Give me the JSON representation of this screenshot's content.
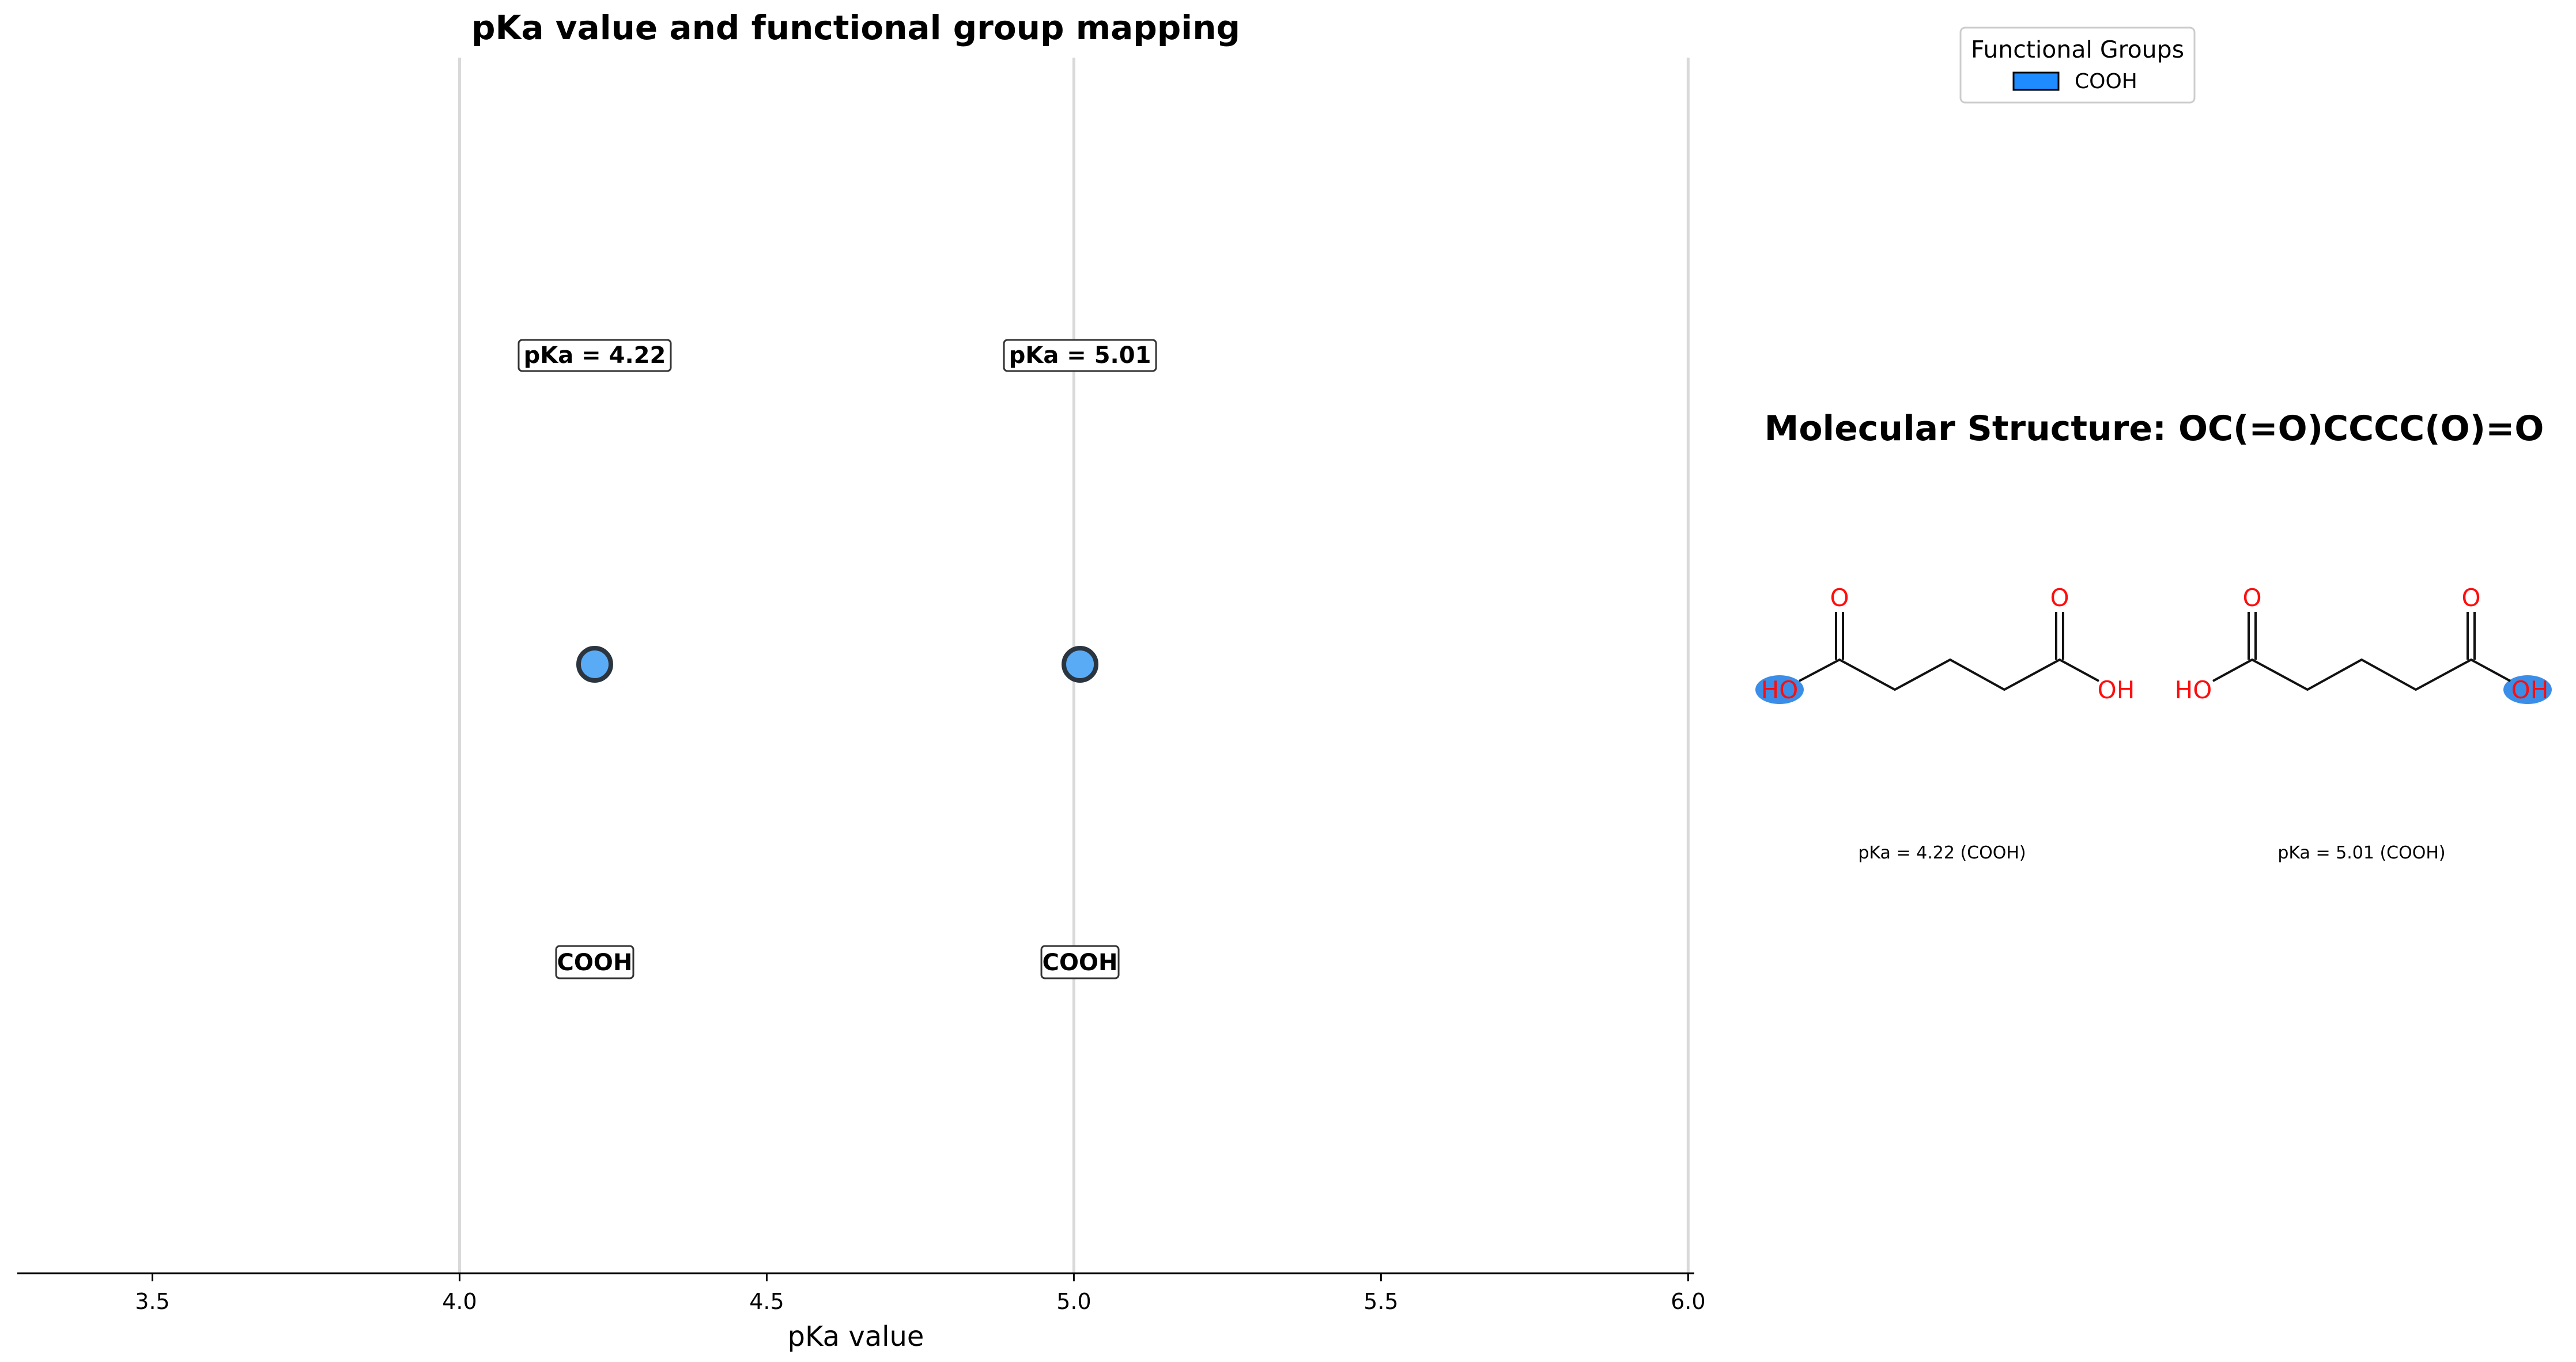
{
  "chart_data": [
    {
      "type": "scatter",
      "title": "pKa value and functional group mapping",
      "xlabel": "pKa value",
      "ylabel": "",
      "xlim": [
        3.28,
        6.01
      ],
      "xticks": [
        "3.5",
        "4.0",
        "4.5",
        "5.0",
        "5.5",
        "6.0"
      ],
      "xtick_values": [
        3.5,
        4.0,
        4.5,
        5.0,
        5.5,
        6.0
      ],
      "grid": "vertical lines at 4.0, 5.0, 6.0",
      "series": [
        {
          "name": "COOH",
          "values": [
            4.22,
            5.01
          ],
          "labels": [
            "pKa = 4.22",
            "pKa = 5.01"
          ],
          "group_labels": [
            "COOH",
            "COOH"
          ]
        }
      ],
      "marker_color": "#5aabf5",
      "marker_edge": "#2b3540"
    }
  ],
  "legend": {
    "title": "Functional Groups",
    "placement": "top-right",
    "items": [
      {
        "label": "COOH",
        "color": "#1e8cff"
      }
    ]
  },
  "molecule": {
    "title": "Molecular Structure: OC(=O)CCCC(O)=O",
    "structures": [
      {
        "caption": "pKa = 4.22 (COOH)",
        "highlight": "left",
        "atoms": {
          "o_top_left": "O",
          "o_top_right": "O",
          "oh_left": "HO",
          "oh_right": "OH"
        }
      },
      {
        "caption": "pKa = 5.01 (COOH)",
        "highlight": "right",
        "atoms": {
          "o_top_left": "O",
          "o_top_right": "O",
          "oh_left": "HO",
          "oh_right": "OH"
        }
      }
    ],
    "atom_color": "#ff0d0d",
    "bond_color": "#111111",
    "highlight_color": "#3a8ee8"
  }
}
